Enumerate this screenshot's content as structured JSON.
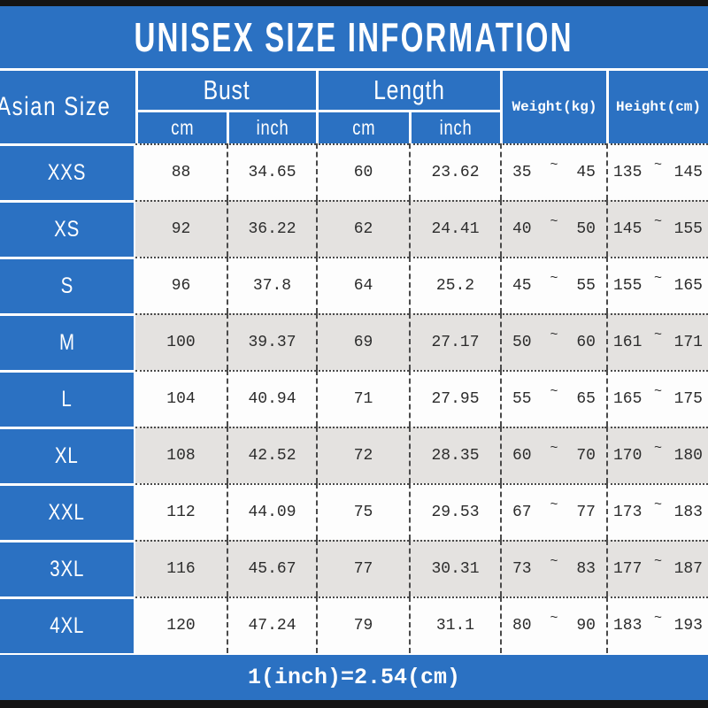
{
  "title": "UNISEX SIZE INFORMATION",
  "footer": {
    "note": "1(inch)=2.54(cm)"
  },
  "table": {
    "corner_header": "Asian Size",
    "tilde": "~",
    "groups": [
      {
        "label": "Bust",
        "sub": [
          "cm",
          "inch"
        ]
      },
      {
        "label": "Length",
        "sub": [
          "cm",
          "inch"
        ]
      }
    ],
    "side_headers": [
      "Weight(kg)",
      "Height(cm)"
    ],
    "rows": [
      {
        "size": "XXS",
        "bust_cm": "88",
        "bust_inch": "34.65",
        "length_cm": "60",
        "length_inch": "23.62",
        "weight": [
          "35",
          "45"
        ],
        "height": [
          "135",
          "145"
        ]
      },
      {
        "size": "XS",
        "bust_cm": "92",
        "bust_inch": "36.22",
        "length_cm": "62",
        "length_inch": "24.41",
        "weight": [
          "40",
          "50"
        ],
        "height": [
          "145",
          "155"
        ]
      },
      {
        "size": "S",
        "bust_cm": "96",
        "bust_inch": "37.8",
        "length_cm": "64",
        "length_inch": "25.2",
        "weight": [
          "45",
          "55"
        ],
        "height": [
          "155",
          "165"
        ]
      },
      {
        "size": "M",
        "bust_cm": "100",
        "bust_inch": "39.37",
        "length_cm": "69",
        "length_inch": "27.17",
        "weight": [
          "50",
          "60"
        ],
        "height": [
          "161",
          "171"
        ]
      },
      {
        "size": "L",
        "bust_cm": "104",
        "bust_inch": "40.94",
        "length_cm": "71",
        "length_inch": "27.95",
        "weight": [
          "55",
          "65"
        ],
        "height": [
          "165",
          "175"
        ]
      },
      {
        "size": "XL",
        "bust_cm": "108",
        "bust_inch": "42.52",
        "length_cm": "72",
        "length_inch": "28.35",
        "weight": [
          "60",
          "70"
        ],
        "height": [
          "170",
          "180"
        ]
      },
      {
        "size": "XXL",
        "bust_cm": "112",
        "bust_inch": "44.09",
        "length_cm": "75",
        "length_inch": "29.53",
        "weight": [
          "67",
          "77"
        ],
        "height": [
          "173",
          "183"
        ]
      },
      {
        "size": "3XL",
        "bust_cm": "116",
        "bust_inch": "45.67",
        "length_cm": "77",
        "length_inch": "30.31",
        "weight": [
          "73",
          "83"
        ],
        "height": [
          "177",
          "187"
        ]
      },
      {
        "size": "4XL",
        "bust_cm": "120",
        "bust_inch": "47.24",
        "length_cm": "79",
        "length_inch": "31.1",
        "weight": [
          "80",
          "90"
        ],
        "height": [
          "183",
          "193"
        ]
      }
    ]
  },
  "colors": {
    "blue": "#2b71c2",
    "row_alt_gray": "#e4e2e0",
    "border_dark": "#4a4a4a",
    "bar_black": "#141414",
    "text_white": "#ffffff"
  },
  "chart_data": {
    "type": "table",
    "title": "UNISEX SIZE INFORMATION",
    "columns": [
      "Asian Size",
      "Bust cm",
      "Bust inch",
      "Length cm",
      "Length inch",
      "Weight(kg)",
      "Height(cm)"
    ],
    "rows": [
      [
        "XXS",
        88,
        34.65,
        60,
        23.62,
        "35~45",
        "135~145"
      ],
      [
        "XS",
        92,
        36.22,
        62,
        24.41,
        "40~50",
        "145~155"
      ],
      [
        "S",
        96,
        37.8,
        64,
        25.2,
        "45~55",
        "155~165"
      ],
      [
        "M",
        100,
        39.37,
        69,
        27.17,
        "50~60",
        "161~171"
      ],
      [
        "L",
        104,
        40.94,
        71,
        27.95,
        "55~65",
        "165~175"
      ],
      [
        "XL",
        108,
        42.52,
        72,
        28.35,
        "60~70",
        "170~180"
      ],
      [
        "XXL",
        112,
        44.09,
        75,
        29.53,
        "67~77",
        "173~183"
      ],
      [
        "3XL",
        116,
        45.67,
        77,
        30.31,
        "73~83",
        "177~187"
      ],
      [
        "4XL",
        120,
        47.24,
        79,
        31.1,
        "80~90",
        "183~193"
      ]
    ],
    "note": "1(inch)=2.54(cm)"
  }
}
